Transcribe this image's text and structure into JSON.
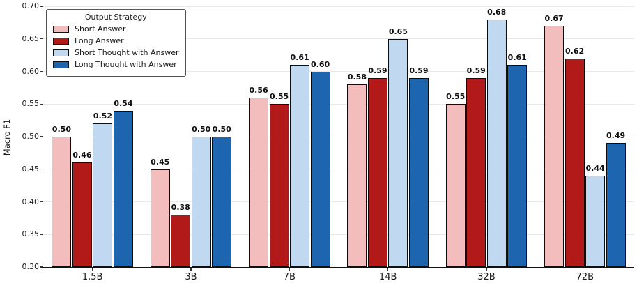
{
  "chart_data": {
    "type": "bar",
    "title": "",
    "xlabel": "",
    "ylabel": "Macro F1",
    "categories": [
      "1.5B",
      "3B",
      "7B",
      "14B",
      "32B",
      "72B"
    ],
    "series": [
      {
        "name": "Short Answer",
        "color": "#f3bcbd",
        "values": [
          0.5,
          0.45,
          0.56,
          0.58,
          0.55,
          0.67
        ]
      },
      {
        "name": "Long Answer",
        "color": "#b21a1a",
        "values": [
          0.46,
          0.38,
          0.55,
          0.59,
          0.59,
          0.62
        ]
      },
      {
        "name": "Short Thought with Answer",
        "color": "#c0d8f0",
        "values": [
          0.52,
          0.5,
          0.61,
          0.65,
          0.68,
          0.44
        ]
      },
      {
        "name": "Long Thought with Answer",
        "color": "#1e65b0",
        "values": [
          0.54,
          0.5,
          0.6,
          0.59,
          0.61,
          0.49
        ]
      }
    ],
    "ylim": [
      0.3,
      0.7
    ],
    "yticks": [
      0.3,
      0.35,
      0.4,
      0.45,
      0.5,
      0.55,
      0.6,
      0.65,
      0.7
    ],
    "grid": "horizontal-light",
    "value_labels": true,
    "bar_edge_color": "#0d0d0d",
    "legend": {
      "title": "Output Strategy",
      "position": "upper-left",
      "entries": [
        "Short Answer",
        "Long Answer",
        "Short Thought with Answer",
        "Long Thought with Answer"
      ]
    }
  }
}
